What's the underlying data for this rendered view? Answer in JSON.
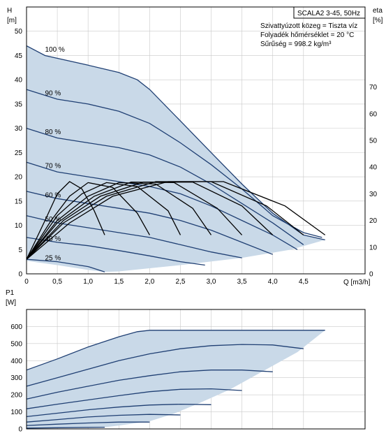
{
  "info_box": {
    "model": "SCALA2 3-45, 50Hz",
    "lines": [
      "Szivattyúzott közeg = Tiszta víz",
      "Folyadék hőmérséklet = 20 °C",
      "Sűrűség = 998.2 kg/m³"
    ]
  },
  "chart_data": [
    {
      "type": "line",
      "name": "head-efficiency",
      "ylabel": [
        "H",
        "[m]"
      ],
      "y2label": [
        "eta",
        "[%]"
      ],
      "xlabel": "Q [m3/h]",
      "xlim": [
        0,
        5.5
      ],
      "ylim": [
        0,
        55
      ],
      "y2lim": [
        0,
        100
      ],
      "xticks": [
        0,
        0.5,
        1.0,
        1.5,
        2.0,
        2.5,
        3.0,
        3.5,
        4.0,
        4.5
      ],
      "xtick_labels": [
        "0",
        "0,5",
        "1,0",
        "1,5",
        "2,0",
        "2,5",
        "3,0",
        "3,5",
        "4,0",
        "4,5"
      ],
      "yticks": [
        0,
        5,
        10,
        15,
        20,
        25,
        30,
        35,
        40,
        45,
        50
      ],
      "y2ticks": [
        0,
        10,
        20,
        30,
        40,
        50,
        60,
        70
      ],
      "region": [
        [
          0,
          47
        ],
        [
          0.3,
          45
        ],
        [
          1.0,
          43
        ],
        [
          1.5,
          41.5
        ],
        [
          1.8,
          40
        ],
        [
          2.0,
          38
        ],
        [
          2.5,
          31.5
        ],
        [
          3.0,
          25
        ],
        [
          3.5,
          18.5
        ],
        [
          4.0,
          12.5
        ],
        [
          4.5,
          8
        ],
        [
          4.85,
          7
        ],
        [
          4.3,
          5
        ],
        [
          3.5,
          3.3
        ],
        [
          2.5,
          1.8
        ],
        [
          1.5,
          0.5
        ],
        [
          1.27,
          0.4
        ],
        [
          1.0,
          0.8
        ],
        [
          0.5,
          1.8
        ],
        [
          0.15,
          2.4
        ],
        [
          0,
          2.7
        ]
      ],
      "series": [
        {
          "label": "100 %",
          "label_at": [
            0.3,
            45.8
          ],
          "points": [
            [
              0,
              47
            ],
            [
              0.3,
              45
            ],
            [
              1.0,
              43
            ],
            [
              1.5,
              41.5
            ],
            [
              1.8,
              40
            ],
            [
              2.0,
              38
            ],
            [
              2.5,
              31.5
            ],
            [
              3.0,
              25
            ],
            [
              3.5,
              18.5
            ],
            [
              4.0,
              12.5
            ],
            [
              4.5,
              8
            ],
            [
              4.85,
              7
            ]
          ]
        },
        {
          "label": "90 %",
          "label_at": [
            0.3,
            36.8
          ],
          "points": [
            [
              0,
              38
            ],
            [
              0.5,
              36
            ],
            [
              1.0,
              35
            ],
            [
              1.5,
              33.5
            ],
            [
              2.0,
              31
            ],
            [
              2.5,
              27
            ],
            [
              3.0,
              22.5
            ],
            [
              3.5,
              17.5
            ],
            [
              4.0,
              12
            ],
            [
              4.5,
              8.5
            ],
            [
              4.8,
              7.5
            ]
          ]
        },
        {
          "label": "80 %",
          "label_at": [
            0.3,
            28.8
          ],
          "points": [
            [
              0,
              30
            ],
            [
              0.5,
              28
            ],
            [
              1.0,
              27
            ],
            [
              1.5,
              26
            ],
            [
              2.0,
              24.5
            ],
            [
              2.5,
              22
            ],
            [
              3.0,
              18.5
            ],
            [
              3.5,
              14.5
            ],
            [
              4.0,
              10.5
            ],
            [
              4.5,
              6
            ]
          ]
        },
        {
          "label": "70 %",
          "label_at": [
            0.3,
            21.8
          ],
          "points": [
            [
              0,
              23
            ],
            [
              0.5,
              21
            ],
            [
              1.0,
              20
            ],
            [
              1.5,
              19
            ],
            [
              2.0,
              18
            ],
            [
              2.5,
              16.5
            ],
            [
              3.0,
              14
            ],
            [
              3.5,
              11
            ],
            [
              4.0,
              8
            ],
            [
              4.4,
              5
            ]
          ]
        },
        {
          "label": "60 %",
          "label_at": [
            0.3,
            15.8
          ],
          "points": [
            [
              0,
              17
            ],
            [
              0.5,
              15.5
            ],
            [
              1.0,
              14.5
            ],
            [
              1.5,
              13.5
            ],
            [
              2.0,
              12.5
            ],
            [
              2.5,
              11
            ],
            [
              3.0,
              9
            ],
            [
              3.5,
              6.5
            ],
            [
              4.0,
              4
            ]
          ]
        },
        {
          "label": "50 %",
          "label_at": [
            0.3,
            10.8
          ],
          "points": [
            [
              0,
              12
            ],
            [
              0.5,
              10.5
            ],
            [
              1.0,
              9.5
            ],
            [
              1.5,
              8.5
            ],
            [
              2.0,
              7.5
            ],
            [
              2.5,
              6
            ],
            [
              3.0,
              4.5
            ],
            [
              3.5,
              3.3
            ]
          ]
        },
        {
          "label": "40 %",
          "label_at": [
            0.3,
            6.8
          ],
          "points": [
            [
              0,
              7.5
            ],
            [
              0.5,
              6.5
            ],
            [
              1.0,
              5.8
            ],
            [
              1.5,
              4.8
            ],
            [
              2.0,
              3.7
            ],
            [
              2.5,
              2.5
            ],
            [
              2.9,
              1.8
            ]
          ]
        },
        {
          "label": "25 %",
          "label_at": [
            0.3,
            2.8
          ],
          "points": [
            [
              0,
              3
            ],
            [
              0.5,
              2.5
            ],
            [
              1.0,
              1.5
            ],
            [
              1.27,
              0.4
            ]
          ]
        }
      ],
      "efficiency_series": [
        {
          "points": [
            [
              0,
              3
            ],
            [
              0.3,
              11
            ],
            [
              0.5,
              16.5
            ],
            [
              0.7,
              19
            ],
            [
              0.9,
              17.5
            ],
            [
              1.1,
              13
            ],
            [
              1.27,
              8
            ]
          ]
        },
        {
          "points": [
            [
              0,
              3
            ],
            [
              0.4,
              11
            ],
            [
              0.7,
              16
            ],
            [
              1.0,
              18.8
            ],
            [
              1.4,
              17.8
            ],
            [
              1.8,
              12.5
            ],
            [
              2.0,
              8
            ]
          ]
        },
        {
          "points": [
            [
              0,
              3
            ],
            [
              0.5,
              12
            ],
            [
              0.9,
              16.5
            ],
            [
              1.3,
              18.8
            ],
            [
              1.8,
              18
            ],
            [
              2.3,
              13
            ],
            [
              2.5,
              8
            ]
          ]
        },
        {
          "points": [
            [
              0,
              3
            ],
            [
              0.5,
              11
            ],
            [
              1.0,
              16
            ],
            [
              1.5,
              18.8
            ],
            [
              2.1,
              18.5
            ],
            [
              2.7,
              13.5
            ],
            [
              3.0,
              8
            ]
          ]
        },
        {
          "points": [
            [
              0,
              3
            ],
            [
              0.5,
              10.5
            ],
            [
              1.1,
              16
            ],
            [
              1.7,
              18.9
            ],
            [
              2.4,
              18.8
            ],
            [
              3.1,
              13.5
            ],
            [
              3.5,
              8
            ]
          ]
        },
        {
          "points": [
            [
              0,
              3
            ],
            [
              0.6,
              11
            ],
            [
              1.2,
              16
            ],
            [
              1.9,
              18.9
            ],
            [
              2.7,
              18.9
            ],
            [
              3.5,
              14
            ],
            [
              4.0,
              8
            ]
          ]
        },
        {
          "points": [
            [
              0,
              3
            ],
            [
              0.6,
              10.5
            ],
            [
              1.3,
              16
            ],
            [
              2.1,
              19
            ],
            [
              3.0,
              19
            ],
            [
              3.9,
              14
            ],
            [
              4.5,
              8
            ]
          ]
        },
        {
          "points": [
            [
              0,
              3
            ],
            [
              0.7,
              10.5
            ],
            [
              1.4,
              16
            ],
            [
              2.3,
              19
            ],
            [
              3.2,
              19
            ],
            [
              4.2,
              14
            ],
            [
              4.85,
              8
            ]
          ]
        }
      ]
    },
    {
      "type": "line",
      "name": "power",
      "ylabel": [
        "P1",
        "[W]"
      ],
      "xlim": [
        0,
        5.5
      ],
      "ylim": [
        0,
        700
      ],
      "yticks": [
        0,
        100,
        200,
        300,
        400,
        500,
        600
      ],
      "region": [
        [
          0,
          345
        ],
        [
          0.5,
          410
        ],
        [
          1.0,
          480
        ],
        [
          1.5,
          540
        ],
        [
          1.8,
          570
        ],
        [
          2.0,
          578
        ],
        [
          4.85,
          578
        ],
        [
          4.4,
          450
        ],
        [
          3.8,
          330
        ],
        [
          3.3,
          230
        ],
        [
          2.8,
          150
        ],
        [
          2.4,
          90
        ],
        [
          2.0,
          45
        ],
        [
          1.5,
          20
        ],
        [
          1.27,
          10
        ],
        [
          0,
          5
        ]
      ],
      "series": [
        {
          "points": [
            [
              0,
              345
            ],
            [
              0.5,
              410
            ],
            [
              1.0,
              480
            ],
            [
              1.5,
              540
            ],
            [
              1.8,
              570
            ],
            [
              2.0,
              578
            ],
            [
              4.85,
              578
            ]
          ]
        },
        {
          "points": [
            [
              0,
              250
            ],
            [
              0.5,
              300
            ],
            [
              1.0,
              350
            ],
            [
              1.5,
              400
            ],
            [
              2.0,
              440
            ],
            [
              2.5,
              470
            ],
            [
              3.0,
              488
            ],
            [
              3.5,
              495
            ],
            [
              4.0,
              492
            ],
            [
              4.5,
              470
            ]
          ]
        },
        {
          "points": [
            [
              0,
              175
            ],
            [
              0.5,
              215
            ],
            [
              1.0,
              250
            ],
            [
              1.5,
              285
            ],
            [
              2.0,
              312
            ],
            [
              2.5,
              335
            ],
            [
              3.0,
              345
            ],
            [
              3.5,
              345
            ],
            [
              4.0,
              335
            ]
          ]
        },
        {
          "points": [
            [
              0,
              118
            ],
            [
              0.5,
              145
            ],
            [
              1.0,
              170
            ],
            [
              1.5,
              195
            ],
            [
              2.0,
              218
            ],
            [
              2.5,
              232
            ],
            [
              3.0,
              235
            ],
            [
              3.5,
              225
            ]
          ]
        },
        {
          "points": [
            [
              0,
              72
            ],
            [
              0.5,
              92
            ],
            [
              1.0,
              112
            ],
            [
              1.5,
              128
            ],
            [
              2.0,
              140
            ],
            [
              2.5,
              145
            ],
            [
              3.0,
              142
            ]
          ]
        },
        {
          "points": [
            [
              0,
              40
            ],
            [
              0.5,
              55
            ],
            [
              1.0,
              70
            ],
            [
              1.5,
              80
            ],
            [
              2.0,
              85
            ],
            [
              2.5,
              82
            ]
          ]
        },
        {
          "points": [
            [
              0,
              20
            ],
            [
              0.5,
              28
            ],
            [
              1.0,
              35
            ],
            [
              1.5,
              40
            ],
            [
              2.0,
              40
            ]
          ]
        },
        {
          "points": [
            [
              0,
              5
            ],
            [
              0.5,
              7
            ],
            [
              1.0,
              9
            ],
            [
              1.27,
              10
            ]
          ]
        }
      ]
    }
  ]
}
